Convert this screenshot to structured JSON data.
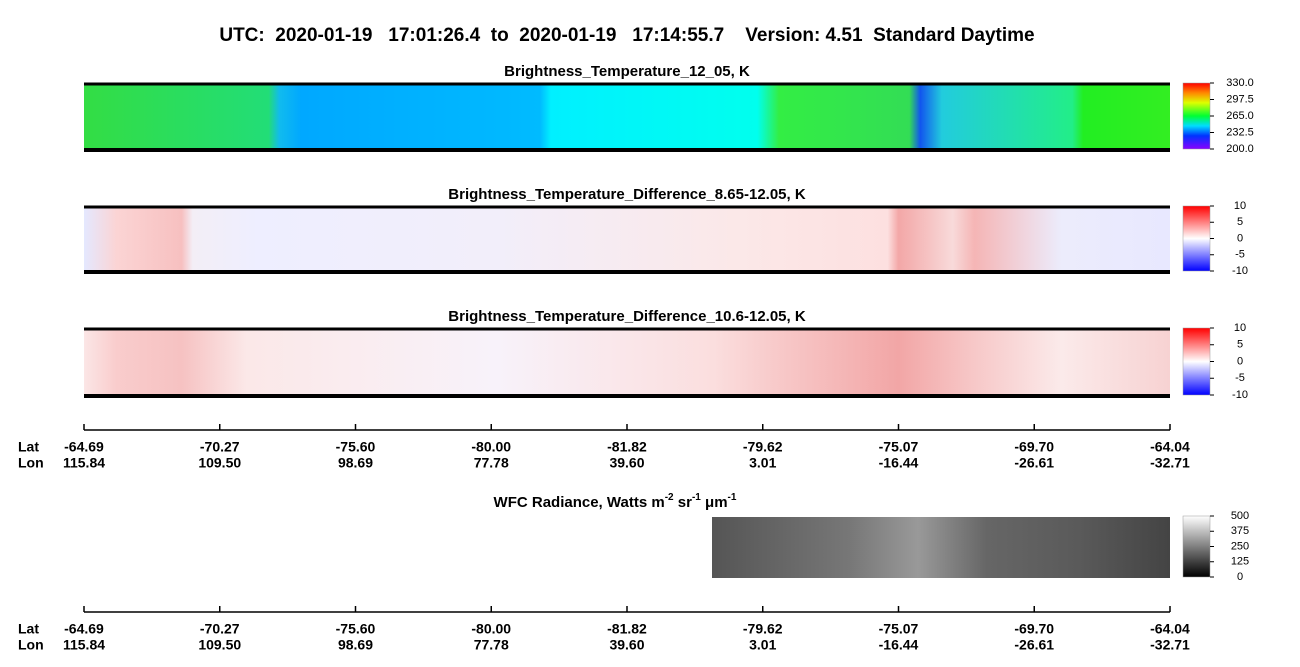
{
  "title": "UTC:  2020-01-19   17:01:26.4  to  2020-01-19   17:14:55.7    Version: 4.51  Standard Daytime",
  "chart_data": [
    {
      "type": "heatmap",
      "title": "Brightness_Temperature_12_05, K",
      "colormap": "rainbow",
      "clim": [
        200,
        330
      ],
      "cticks": [
        {
          "value": 330,
          "label": "330.0"
        },
        {
          "value": 297.5,
          "label": "297.5"
        },
        {
          "value": 265,
          "label": "265.0"
        },
        {
          "value": 232.5,
          "label": "232.5"
        },
        {
          "value": 200,
          "label": "200.0"
        }
      ]
    },
    {
      "type": "heatmap",
      "title": "Brightness_Temperature_Difference_8.65-12.05, K",
      "colormap": "diverging",
      "clim": [
        -10,
        10
      ],
      "cticks": [
        10,
        5,
        0,
        -5,
        -10
      ]
    },
    {
      "type": "heatmap",
      "title": "Brightness_Temperature_Difference_10.6-12.05, K",
      "colormap": "diverging",
      "clim": [
        -10,
        10
      ],
      "cticks": [
        10,
        5,
        0,
        -5,
        -10
      ]
    },
    {
      "type": "heatmap",
      "title_parts": [
        "WFC Radiance, Watts m",
        "-2",
        " sr",
        "-1",
        " μm",
        "-1"
      ],
      "colormap": "gray",
      "clim": [
        0,
        500
      ],
      "cticks": [
        500,
        375,
        250,
        125,
        0
      ]
    }
  ],
  "axes": [
    {
      "lat_label": "Lat",
      "lon_label": "Lon",
      "lat": [
        "-64.69",
        "-70.27",
        "-75.60",
        "-80.00",
        "-81.82",
        "-79.62",
        "-75.07",
        "-69.70",
        "-64.04"
      ],
      "lon": [
        "115.84",
        "109.50",
        "98.69",
        "77.78",
        "39.60",
        "3.01",
        "-16.44",
        "-26.61",
        "-32.71"
      ]
    },
    {
      "lat_label": "Lat",
      "lon_label": "Lon",
      "lat": [
        "-64.69",
        "-70.27",
        "-75.60",
        "-80.00",
        "-81.82",
        "-79.62",
        "-75.07",
        "-69.70",
        "-64.04"
      ],
      "lon": [
        "115.84",
        "109.50",
        "98.69",
        "77.78",
        "39.60",
        "3.01",
        "-16.44",
        "-26.61",
        "-32.71"
      ]
    }
  ]
}
